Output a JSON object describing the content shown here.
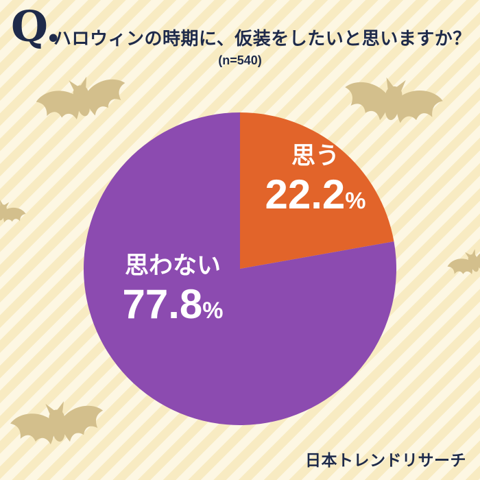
{
  "header": {
    "q_mark": "Q.",
    "title": "ハロウィンの時期に、仮装をしたいと思いますか？",
    "sample_size": "(n=540)"
  },
  "chart_data": {
    "type": "pie",
    "title": "ハロウィンの時期に、仮装をしたいと思いますか？",
    "sample_n": 540,
    "start_angle_deg": 0,
    "direction": "clockwise",
    "legend_position": "inside",
    "slices": [
      {
        "key": "omou",
        "label": "思う",
        "value": 22.2,
        "value_text": "22.2",
        "unit": "%",
        "color": "#E2642A"
      },
      {
        "key": "omowanai",
        "label": "思わない",
        "value": 77.8,
        "value_text": "77.8",
        "unit": "%",
        "color": "#8C4BB0"
      }
    ]
  },
  "footer": {
    "brand": "日本トレンドリサーチ"
  },
  "icons": {
    "bat": "bat-silhouette"
  },
  "colors": {
    "navy": "#1E2A4A",
    "orange": "#E2642A",
    "purple": "#8C4BB0",
    "bat": "#D3BF8C",
    "bg_light": "#FDF7E3",
    "bg_stripe": "#F8EBC2",
    "label_text": "#FFFFFF"
  }
}
